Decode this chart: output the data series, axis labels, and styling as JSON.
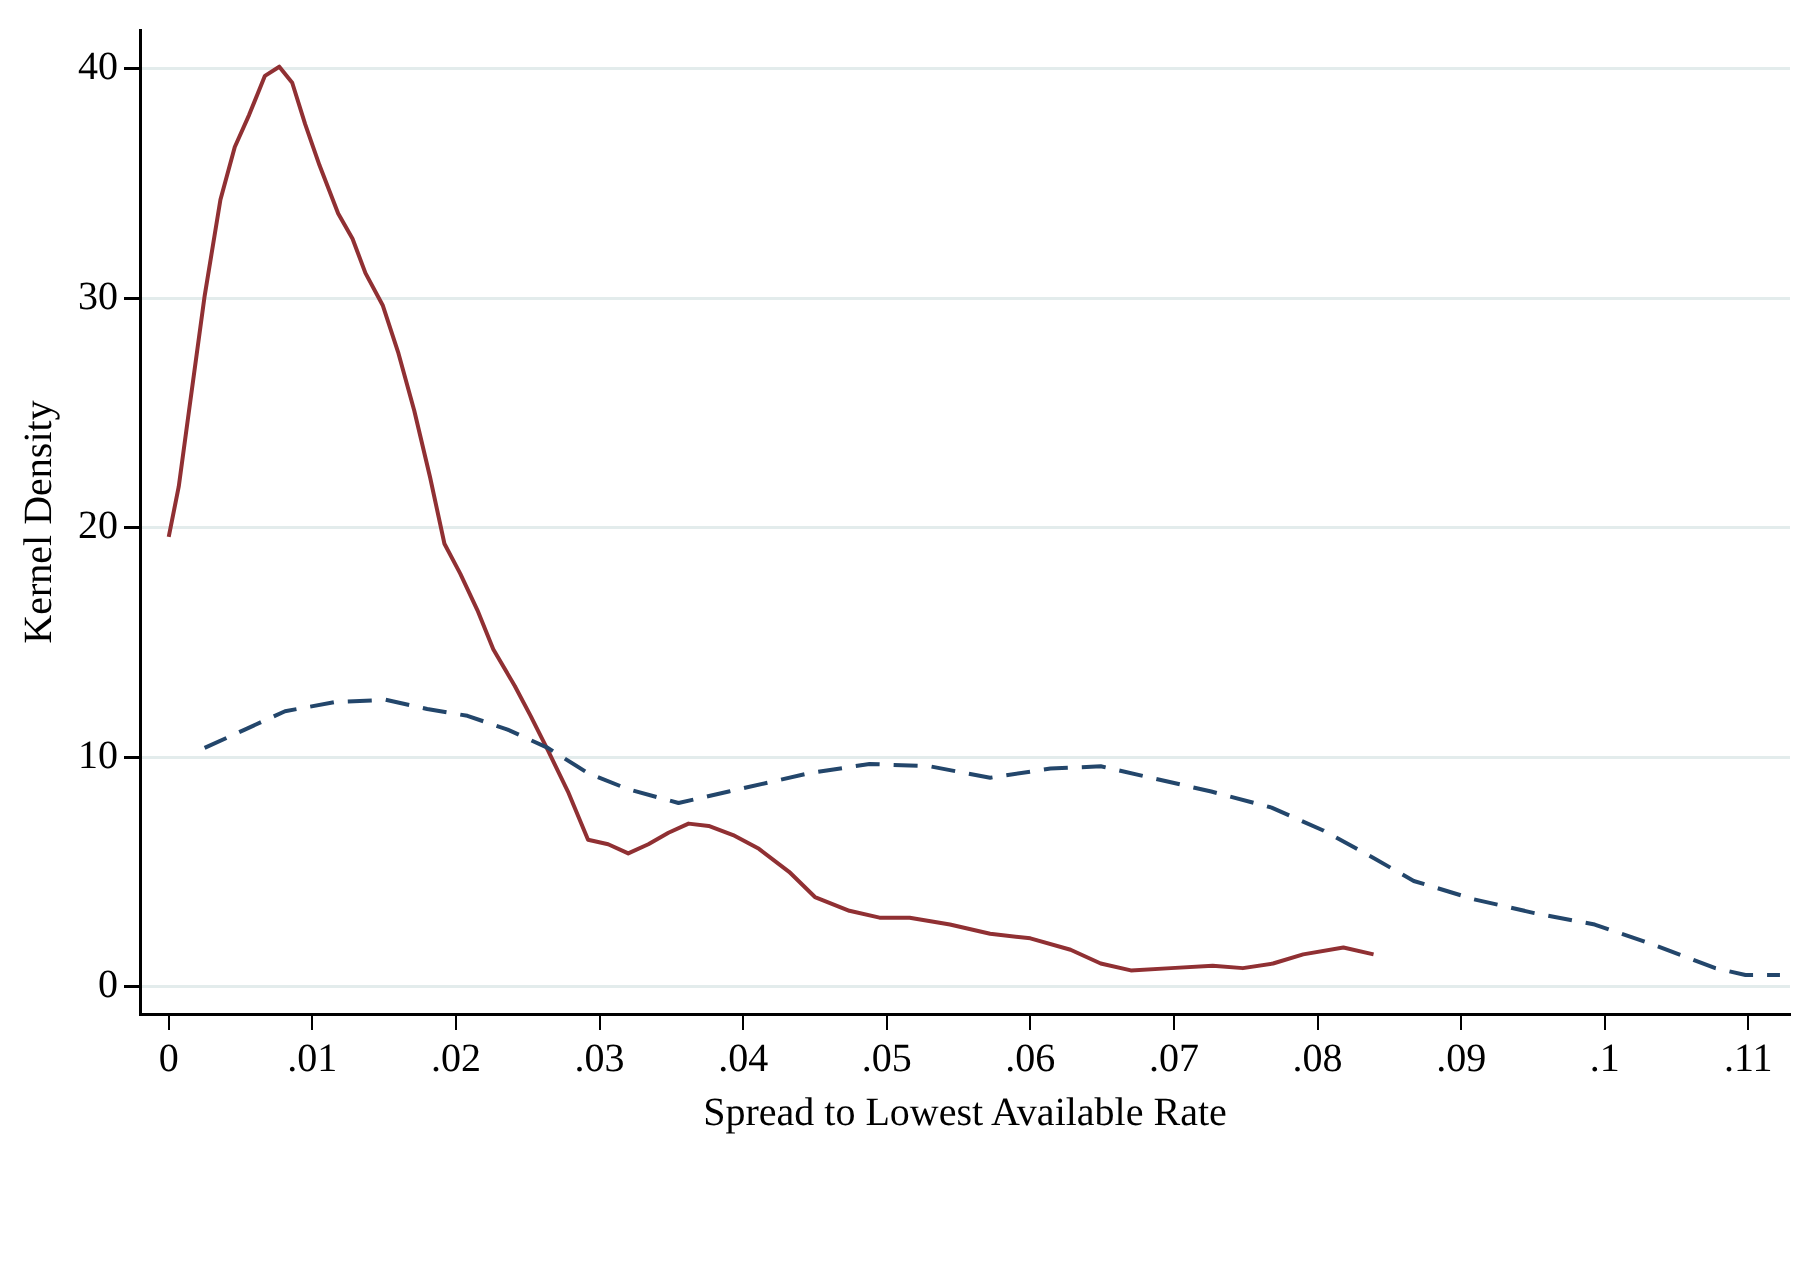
{
  "chart_data": {
    "type": "line",
    "xlabel": "Spread to Lowest Available Rate",
    "ylabel": "Kernel Density",
    "xlim": [
      -0.002,
      0.1129
    ],
    "ylim": [
      -1.2,
      41.7
    ],
    "xticks": [
      {
        "value": 0,
        "label": "0"
      },
      {
        "value": 0.01,
        "label": ".01"
      },
      {
        "value": 0.02,
        "label": ".02"
      },
      {
        "value": 0.03,
        "label": ".03"
      },
      {
        "value": 0.04,
        "label": ".04"
      },
      {
        "value": 0.05,
        "label": ".05"
      },
      {
        "value": 0.06,
        "label": ".06"
      },
      {
        "value": 0.07,
        "label": ".07"
      },
      {
        "value": 0.08,
        "label": ".08"
      },
      {
        "value": 0.09,
        "label": ".09"
      },
      {
        "value": 0.1,
        "label": ".1"
      },
      {
        "value": 0.11,
        "label": ".11"
      }
    ],
    "yticks": [
      0,
      10,
      20,
      30,
      40
    ],
    "grid": "y",
    "legend": false,
    "series": [
      {
        "color": "#23466b",
        "line_style": "dashed",
        "x": [
          0.0025,
          0.0053,
          0.0081,
          0.0116,
          0.0151,
          0.018,
          0.0208,
          0.0236,
          0.0264,
          0.0292,
          0.032,
          0.0355,
          0.039,
          0.0418,
          0.0446,
          0.0488,
          0.053,
          0.0572,
          0.0614,
          0.0649,
          0.0684,
          0.0726,
          0.0768,
          0.0804,
          0.0839,
          0.0867,
          0.0909,
          0.0951,
          0.0993,
          0.1035,
          0.1077,
          0.1098,
          0.1122
        ],
        "values": [
          10.4,
          11.2,
          12.0,
          12.4,
          12.5,
          12.1,
          11.8,
          11.2,
          10.4,
          9.3,
          8.6,
          8.0,
          8.5,
          8.9,
          9.3,
          9.7,
          9.6,
          9.1,
          9.5,
          9.6,
          9.1,
          8.5,
          7.8,
          6.8,
          5.6,
          4.6,
          3.8,
          3.2,
          2.7,
          1.8,
          0.8,
          0.5,
          0.5
        ]
      },
      {
        "color": "#903033",
        "line_style": "solid",
        "x": [
          0,
          0.0007,
          0.0015,
          0.0025,
          0.0036,
          0.0046,
          0.0056,
          0.0067,
          0.0077,
          0.0086,
          0.0095,
          0.0105,
          0.0118,
          0.0128,
          0.0137,
          0.0149,
          0.016,
          0.0171,
          0.0182,
          0.0192,
          0.0203,
          0.0215,
          0.0226,
          0.0241,
          0.0252,
          0.0264,
          0.0278,
          0.0292,
          0.0306,
          0.032,
          0.0334,
          0.0348,
          0.0362,
          0.0376,
          0.0393,
          0.0411,
          0.0432,
          0.045,
          0.0474,
          0.0495,
          0.0516,
          0.0544,
          0.0572,
          0.06,
          0.0628,
          0.0649,
          0.067,
          0.0698,
          0.0727,
          0.0748,
          0.0769,
          0.079,
          0.0818,
          0.0839
        ],
        "values": [
          19.6,
          21.8,
          25.5,
          30.1,
          34.3,
          36.6,
          38.0,
          39.7,
          40.1,
          39.4,
          37.6,
          35.8,
          33.7,
          32.6,
          31.1,
          29.7,
          27.6,
          25.1,
          22.2,
          19.3,
          18.0,
          16.4,
          14.7,
          13.1,
          11.8,
          10.3,
          8.5,
          6.4,
          6.2,
          5.8,
          6.2,
          6.7,
          7.1,
          7.0,
          6.6,
          6.0,
          5.0,
          3.9,
          3.3,
          3.0,
          3.0,
          2.7,
          2.3,
          2.1,
          1.6,
          1.0,
          0.7,
          0.8,
          0.9,
          0.8,
          1.0,
          1.4,
          1.7,
          1.4
        ]
      }
    ]
  }
}
